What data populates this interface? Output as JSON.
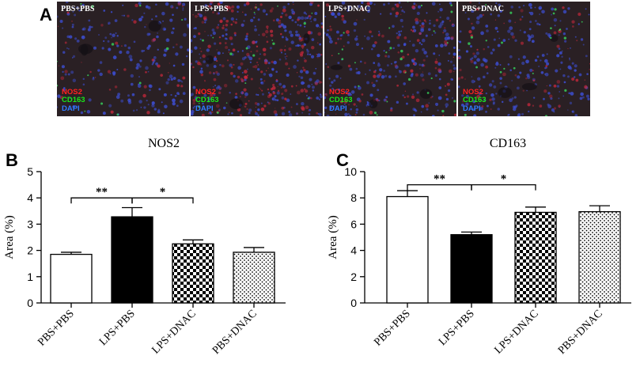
{
  "panel_labels": {
    "a": "A",
    "b": "B",
    "c": "C"
  },
  "micrographs": [
    {
      "title": "PBS+PBS",
      "red_density": 0.1,
      "green_density": 0.06,
      "blue_density": 0.55
    },
    {
      "title": "LPS+PBS",
      "red_density": 0.55,
      "green_density": 0.08,
      "blue_density": 0.7
    },
    {
      "title": "LPS+DNAC",
      "red_density": 0.25,
      "green_density": 0.12,
      "blue_density": 0.65
    },
    {
      "title": "PBS+DNAC",
      "red_density": 0.15,
      "green_density": 0.1,
      "blue_density": 0.6
    }
  ],
  "stain_legend": [
    {
      "label": "NOS2",
      "color": "#ff2020"
    },
    {
      "label": "CD163",
      "color": "#19e619"
    },
    {
      "label": "DAPI",
      "color": "#2f7bff"
    }
  ],
  "chart_data": [
    {
      "type": "bar",
      "title": "NOS2",
      "ylabel": "Area (%)",
      "xlabel": "",
      "categories": [
        "PBS+PBS",
        "LPS+PBS",
        "LPS+DNAC",
        "PBS+DNAC"
      ],
      "values": [
        1.85,
        3.28,
        2.25,
        1.93
      ],
      "errors": [
        0.08,
        0.35,
        0.15,
        0.18
      ],
      "fills": [
        "white",
        "solid",
        "checker",
        "dots"
      ],
      "ylim": [
        0,
        5
      ],
      "yticks": [
        0,
        1,
        2,
        3,
        4,
        5
      ],
      "ytick_labels": [
        "0",
        "1",
        "2",
        "3",
        "4",
        "5"
      ],
      "significance": [
        {
          "from": 0,
          "to": 1,
          "label": "**",
          "y": 4.0
        },
        {
          "from": 1,
          "to": 2,
          "label": "*",
          "y": 4.0
        }
      ]
    },
    {
      "type": "bar",
      "title": "CD163",
      "ylabel": "Area (%)",
      "xlabel": "",
      "categories": [
        "PBS+PBS",
        "LPS+PBS",
        "LPS+DNAC",
        "PBS+DNAC"
      ],
      "values": [
        8.1,
        5.2,
        6.9,
        6.95
      ],
      "errors": [
        0.45,
        0.2,
        0.4,
        0.45
      ],
      "fills": [
        "white",
        "solid",
        "checker",
        "dots"
      ],
      "ylim": [
        0,
        10
      ],
      "yticks": [
        0,
        2,
        4,
        6,
        8,
        10
      ],
      "ytick_labels": [
        "0",
        "2",
        "4",
        "6",
        "8",
        "10"
      ],
      "significance": [
        {
          "from": 0,
          "to": 1,
          "label": "**",
          "y": 9.0
        },
        {
          "from": 1,
          "to": 2,
          "label": "*",
          "y": 9.0
        }
      ]
    }
  ]
}
